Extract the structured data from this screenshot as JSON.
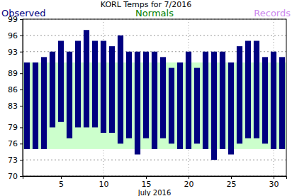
{
  "chart_data": {
    "type": "bar",
    "title": "KORL Temps for 7/2016",
    "x_label": "July 2016",
    "x": [
      1,
      2,
      3,
      4,
      5,
      6,
      7,
      8,
      9,
      10,
      11,
      12,
      13,
      14,
      15,
      16,
      17,
      18,
      19,
      20,
      21,
      22,
      23,
      24,
      25,
      26,
      27,
      28,
      29,
      30,
      31
    ],
    "xlim": [
      0.5,
      31.5
    ],
    "xticks": [
      5,
      10,
      15,
      20,
      25,
      30
    ],
    "ylim": [
      70,
      99
    ],
    "yticks": [
      70,
      73,
      76,
      79,
      83,
      86,
      89,
      93,
      96,
      99
    ],
    "grid": true,
    "series": [
      {
        "name": "Observed",
        "color": "#000080",
        "high": [
          91,
          91,
          92,
          93,
          95,
          93,
          95,
          97,
          95,
          95,
          94,
          96,
          93,
          93,
          93,
          93,
          92,
          90,
          91,
          93,
          90,
          93,
          93,
          93,
          91,
          94,
          95,
          95,
          92,
          93,
          92
        ],
        "low": [
          75,
          75,
          75,
          79,
          80,
          77,
          79,
          79,
          79,
          78,
          78,
          76,
          77,
          74,
          77,
          75,
          77,
          76,
          75,
          75,
          76,
          75,
          73,
          75,
          74,
          76,
          77,
          77,
          76,
          75,
          75
        ]
      },
      {
        "name": "Normals",
        "color": "#008000",
        "high": [
          91,
          91,
          91,
          91,
          91,
          91,
          91,
          91,
          91,
          91,
          91,
          91,
          91,
          91,
          91,
          91,
          91,
          91,
          91,
          91,
          91,
          91,
          91,
          91,
          91,
          91,
          91,
          91,
          91,
          91,
          91
        ],
        "low": [
          75,
          75,
          75,
          75,
          75,
          75,
          75,
          75,
          75,
          75,
          75,
          75,
          75,
          75,
          75,
          75,
          75,
          75,
          75,
          75,
          75,
          75,
          75,
          75,
          75,
          75,
          75,
          75,
          75,
          75,
          75
        ]
      },
      {
        "name": "Records",
        "color": "#cc88ee"
      }
    ]
  }
}
